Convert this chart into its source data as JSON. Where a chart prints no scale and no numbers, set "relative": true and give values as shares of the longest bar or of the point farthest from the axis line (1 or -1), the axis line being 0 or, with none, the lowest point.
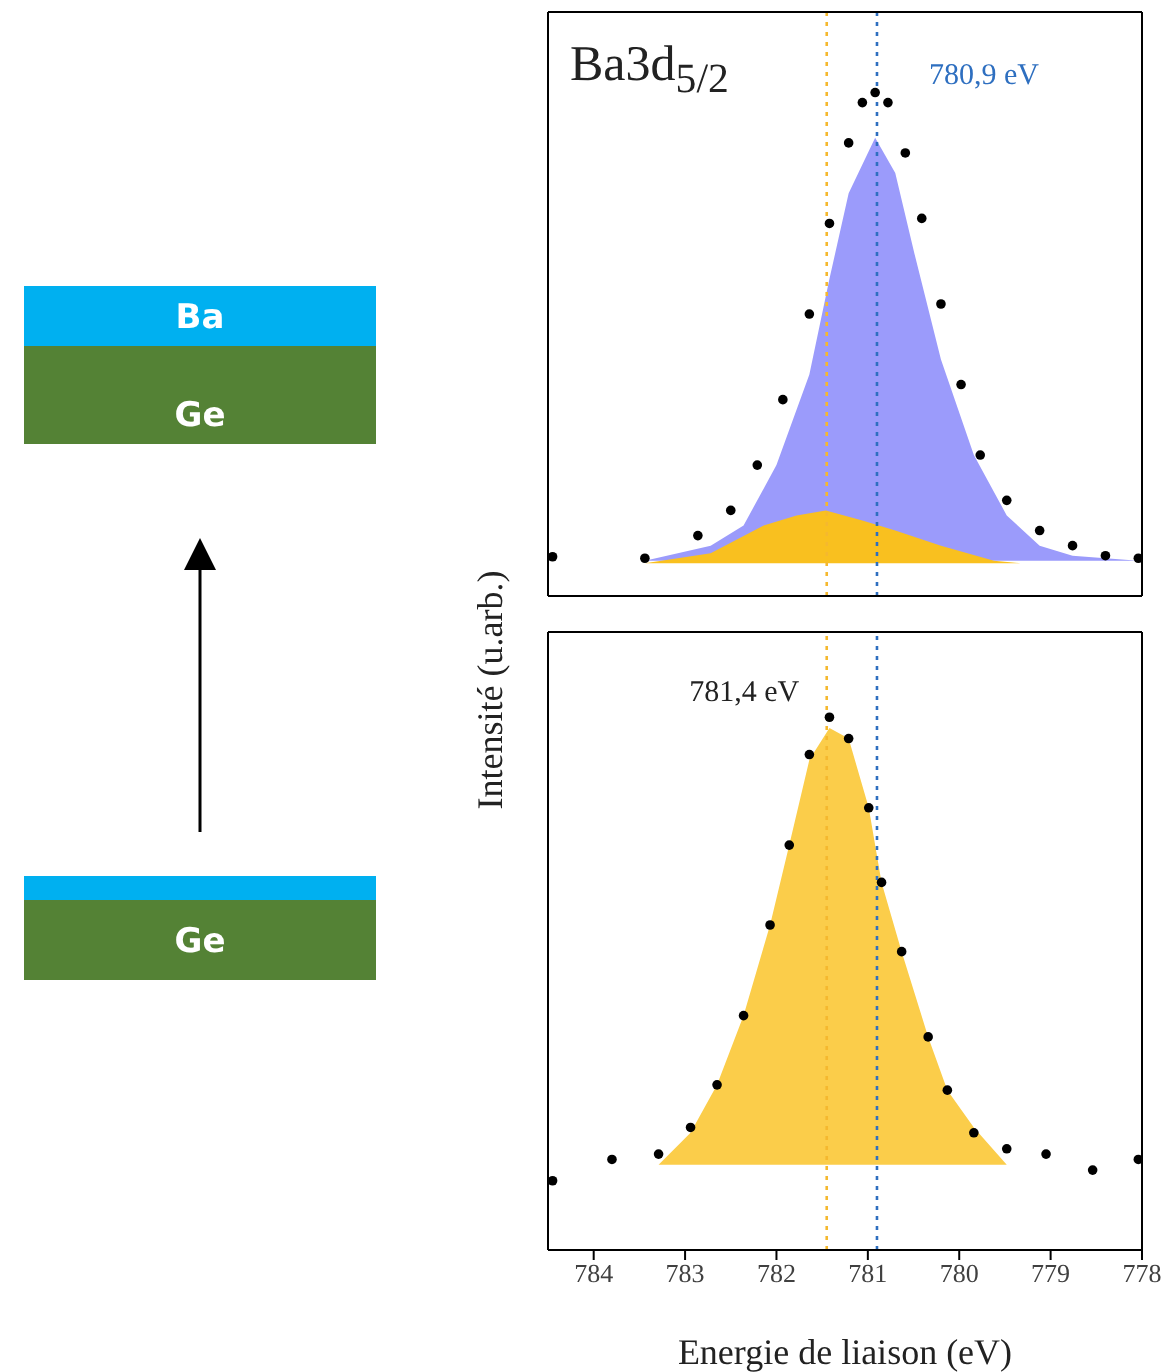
{
  "chart_data": [
    {
      "type": "other",
      "annotations": [
        "Ba",
        "Ge",
        "Ge"
      ]
    },
    {
      "type": "scatter",
      "relative": true,
      "ylabel": "Intensité (u.arb.)",
      "xlim": [
        784.5,
        778
      ],
      "xticks": [
        784,
        783,
        782,
        781,
        780,
        779,
        778
      ],
      "tick_labels": false,
      "annotations": [
        "Ba3d$_{5/2}$"
      ],
      "ref_lines": [
        {
          "axis": "x",
          "value": 781.45,
          "color": "#f5b82e",
          "line_style": "dotted"
        },
        {
          "axis": "x",
          "value": 780.9,
          "label": "780,9 eV",
          "color": "#2e6fc0",
          "line_style": "dotted"
        }
      ],
      "series": [
        {
          "type": "area",
          "color": "#9b9bfb",
          "x": [
            783.44,
            782.72,
            782.36,
            782.0,
            781.64,
            781.42,
            781.21,
            780.92,
            780.7,
            780.49,
            780.2,
            779.84,
            779.48,
            779.12,
            778.76,
            778.04
          ],
          "values": [
            0.07,
            0.1,
            0.14,
            0.26,
            0.44,
            0.63,
            0.8,
            0.91,
            0.84,
            0.68,
            0.47,
            0.28,
            0.16,
            0.1,
            0.08,
            0.07
          ]
        },
        {
          "type": "area",
          "color": "#f9c01f",
          "x": [
            783.44,
            782.72,
            782.14,
            781.78,
            781.46,
            781.06,
            780.7,
            780.2,
            779.62,
            779.33
          ],
          "values": [
            0.065,
            0.085,
            0.14,
            0.16,
            0.17,
            0.15,
            0.13,
            0.1,
            0.07,
            0.065
          ]
        },
        {
          "type": "scatter",
          "marker": "circle",
          "color": "#000000",
          "x": [
            784.45,
            783.44,
            782.86,
            782.5,
            782.21,
            781.93,
            781.64,
            781.42,
            781.21,
            781.06,
            780.92,
            780.78,
            780.59,
            780.41,
            780.2,
            779.98,
            779.77,
            779.48,
            779.12,
            778.76,
            778.4,
            778.04
          ],
          "values": [
            0.078,
            0.075,
            0.12,
            0.17,
            0.26,
            0.39,
            0.56,
            0.74,
            0.9,
            0.98,
            1,
            0.98,
            0.88,
            0.75,
            0.58,
            0.42,
            0.28,
            0.19,
            0.13,
            0.1,
            0.08,
            0.075
          ]
        }
      ]
    },
    {
      "type": "scatter",
      "relative": true,
      "xlabel": "Energie de liaison (eV)",
      "xlim": [
        784.5,
        778
      ],
      "xticks": [
        784,
        783,
        782,
        781,
        780,
        779,
        778
      ],
      "tick_labels": "x",
      "annotations": [
        {
          "text": "781,4 eV",
          "x": 781.4,
          "y": 1
        }
      ],
      "ref_lines": [
        {
          "axis": "x",
          "value": 781.45,
          "color": "#f5b82e",
          "line_style": "dotted"
        },
        {
          "axis": "x",
          "value": 780.9,
          "color": "#2e6fc0",
          "line_style": "dotted"
        }
      ],
      "series": [
        {
          "type": "area",
          "color": "#fbcd4a",
          "x": [
            783.29,
            782.94,
            782.65,
            782.36,
            782.07,
            781.86,
            781.64,
            781.42,
            781.21,
            780.99,
            780.85,
            780.63,
            780.34,
            780.13,
            779.84,
            779.48
          ],
          "values": [
            0.16,
            0.22,
            0.31,
            0.44,
            0.61,
            0.76,
            0.92,
            0.98,
            0.96,
            0.83,
            0.69,
            0.56,
            0.4,
            0.3,
            0.23,
            0.16
          ]
        },
        {
          "type": "scatter",
          "marker": "circle",
          "color": "#000000",
          "x": [
            784.45,
            783.8,
            783.29,
            782.94,
            782.65,
            782.36,
            782.07,
            781.86,
            781.64,
            781.42,
            781.21,
            780.99,
            780.85,
            780.63,
            780.34,
            780.13,
            779.84,
            779.48,
            779.05,
            778.54,
            778.04
          ],
          "values": [
            0.13,
            0.17,
            0.18,
            0.23,
            0.31,
            0.44,
            0.61,
            0.76,
            0.93,
            1,
            0.96,
            0.83,
            0.69,
            0.56,
            0.4,
            0.3,
            0.22,
            0.19,
            0.18,
            0.15,
            0.17
          ]
        }
      ]
    }
  ]
}
